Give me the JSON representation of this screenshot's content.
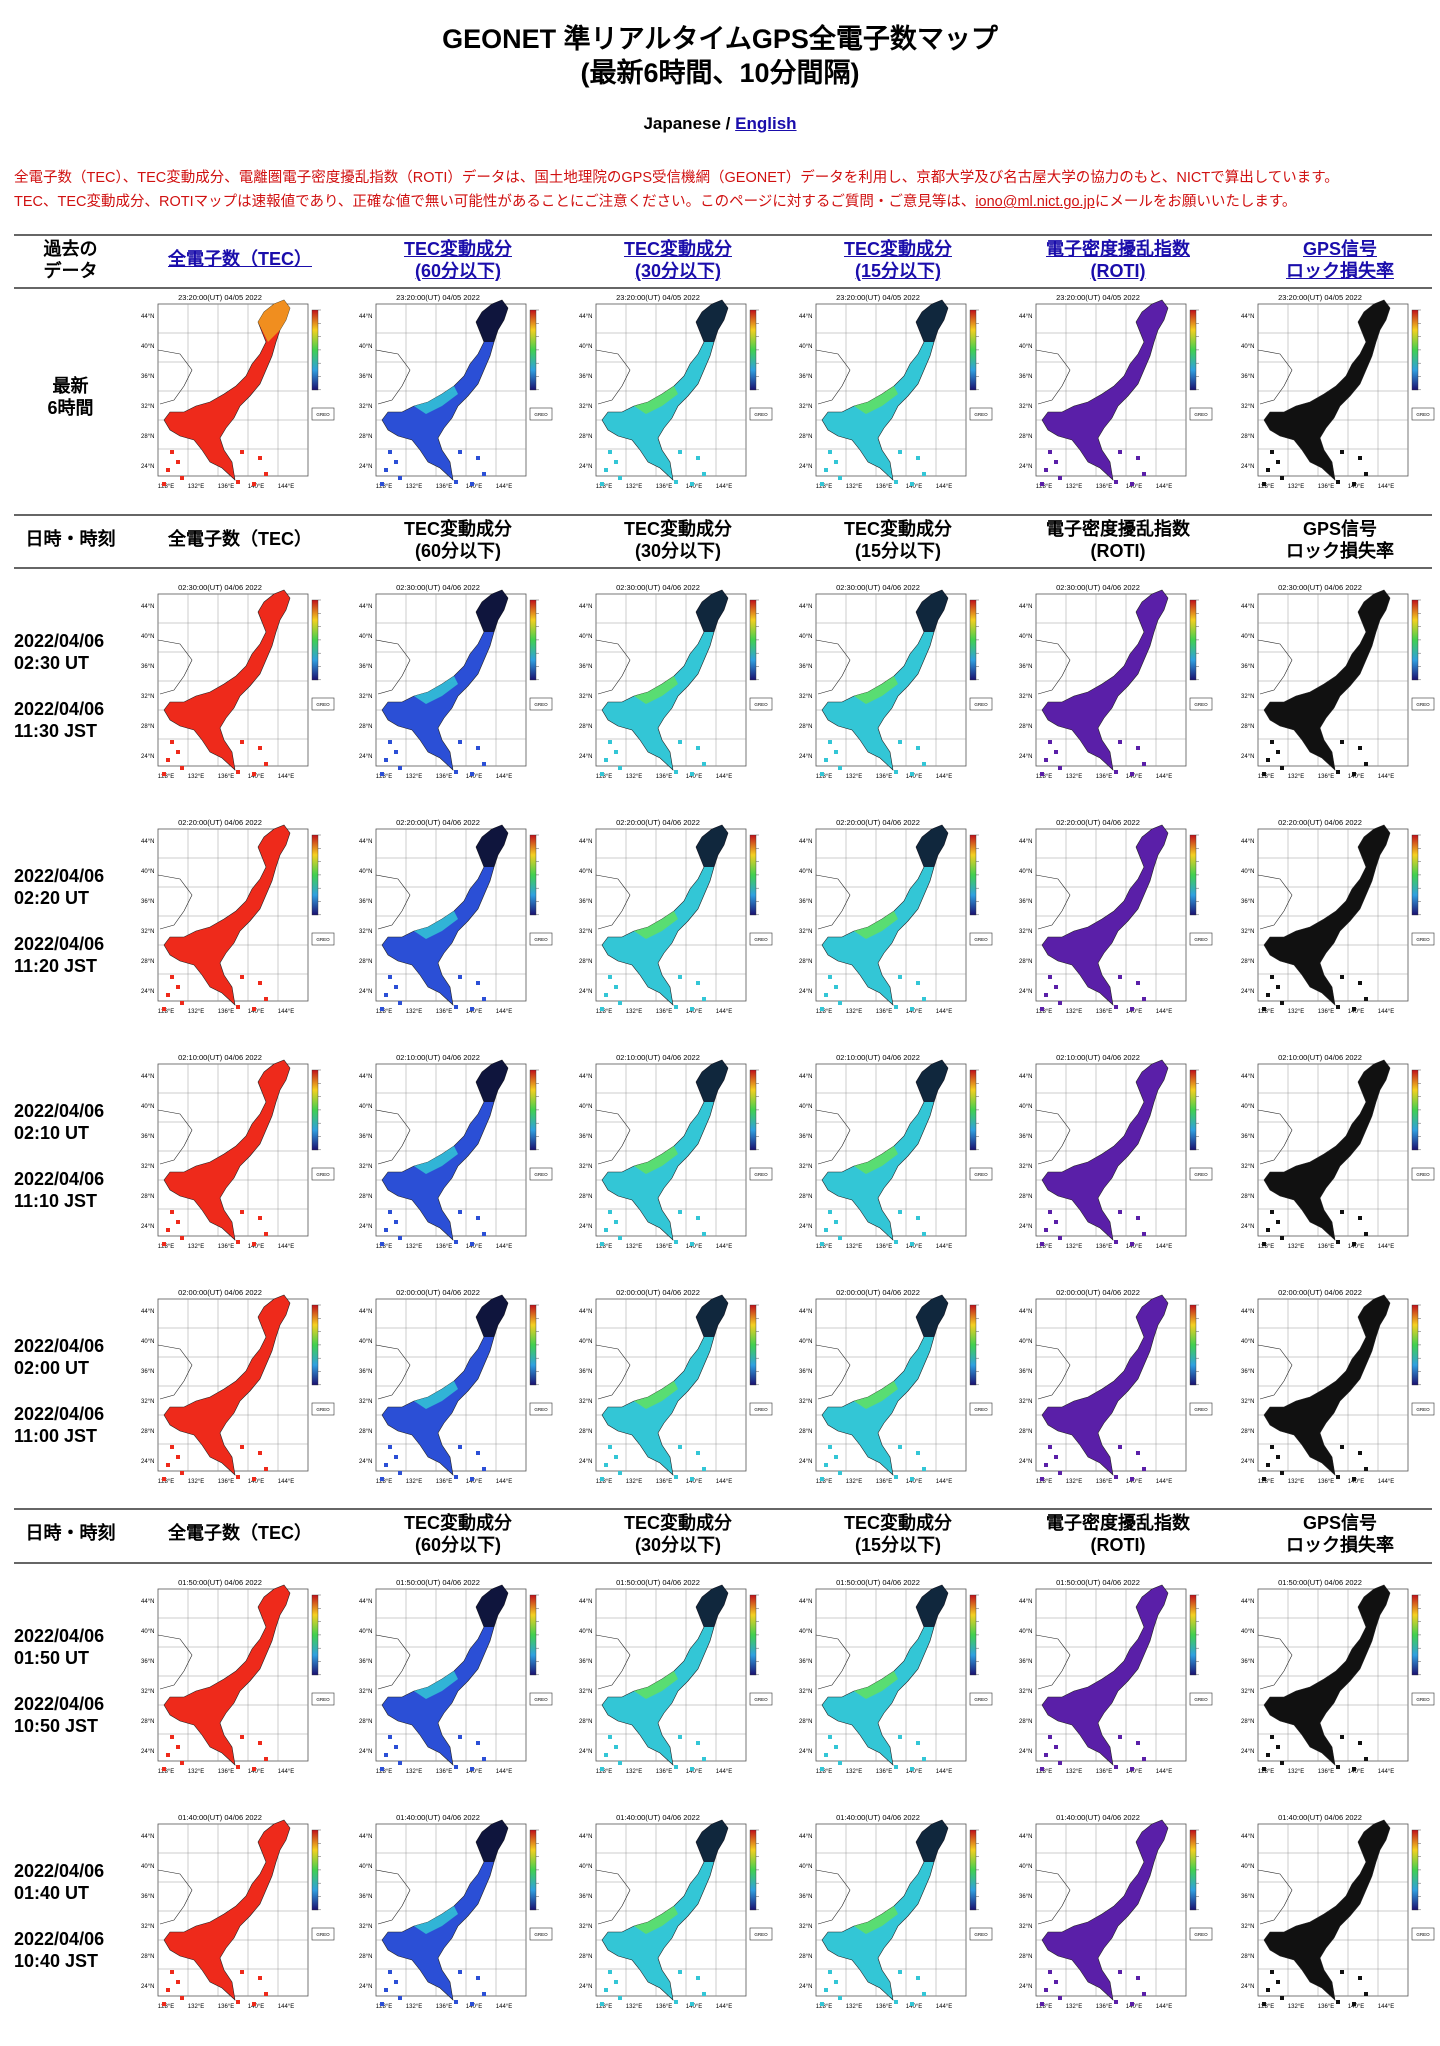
{
  "page": {
    "title_line1": "GEONET 準リアルタイムGPS全電子数マップ",
    "title_line2": "(最新6時間、10分間隔)",
    "lang_current": "Japanese",
    "lang_sep": "/",
    "lang_english": "English",
    "notice_line1": "全電子数（TEC）、TEC変動成分、電離圏電子密度擾乱指数（ROTI）データは、国土地理院のGPS受信機網（GEONET）データを利用し、京都大学及び名古屋大学の協力のもと、NICTで算出しています。",
    "notice_line2_pre": "TEC、TEC変動成分、ROTIマップは速報値であり、正確な値で無い可能性があることにご注意ください。このページに対するご質問・ご意見等は、",
    "notice_email": "iono@ml.nict.go.jp",
    "notice_line2_post": "にメールをお願いいたします。"
  },
  "header_links": {
    "past_label": "過去の\nデータ",
    "cols": [
      {
        "line1": "全電子数（TEC）",
        "line2": ""
      },
      {
        "line1": "TEC変動成分",
        "line2": "(60分以下)"
      },
      {
        "line1": "TEC変動成分",
        "line2": "(30分以下)"
      },
      {
        "line1": "TEC変動成分",
        "line2": "(15分以下)"
      },
      {
        "line1": "電子密度擾乱指数",
        "line2": "(ROTI)"
      },
      {
        "line1": "GPS信号",
        "line2": "ロック損失率"
      }
    ]
  },
  "header_plain": {
    "label": "日時・時刻",
    "cols": [
      {
        "line1": "全電子数（TEC）",
        "line2": ""
      },
      {
        "line1": "TEC変動成分",
        "line2": "(60分以下)"
      },
      {
        "line1": "TEC変動成分",
        "line2": "(30分以下)"
      },
      {
        "line1": "TEC変動成分",
        "line2": "(15分以下)"
      },
      {
        "line1": "電子密度擾乱指数",
        "line2": "(ROTI)"
      },
      {
        "line1": "GPS信号",
        "line2": "ロック損失率"
      }
    ]
  },
  "latest": {
    "label_line1": "最新",
    "label_line2": "6時間",
    "map_title": "23:20:00(UT) 04/05 2022"
  },
  "rows": [
    {
      "utc_date": "2022/04/06",
      "utc_time": "02:30 UT",
      "jst_date": "2022/04/06",
      "jst_time": "11:30 JST",
      "map_title": "02:30:00(UT) 04/06 2022"
    },
    {
      "utc_date": "2022/04/06",
      "utc_time": "02:20 UT",
      "jst_date": "2022/04/06",
      "jst_time": "11:20 JST",
      "map_title": "02:20:00(UT) 04/06 2022"
    },
    {
      "utc_date": "2022/04/06",
      "utc_time": "02:10 UT",
      "jst_date": "2022/04/06",
      "jst_time": "11:10 JST",
      "map_title": "02:10:00(UT) 04/06 2022"
    },
    {
      "utc_date": "2022/04/06",
      "utc_time": "02:00 UT",
      "jst_date": "2022/04/06",
      "jst_time": "11:00 JST",
      "map_title": "02:00:00(UT) 04/06 2022"
    },
    {
      "utc_date": "2022/04/06",
      "utc_time": "01:50 UT",
      "jst_date": "2022/04/06",
      "jst_time": "10:50 JST",
      "map_title": "01:50:00(UT) 04/06 2022"
    },
    {
      "utc_date": "2022/04/06",
      "utc_time": "01:40 UT",
      "jst_date": "2022/04/06",
      "jst_time": "10:40 JST",
      "map_title": "01:40:00(UT) 04/06 2022"
    }
  ],
  "map_axes": {
    "lat_ticks": [
      "44°N",
      "40°N",
      "36°N",
      "32°N",
      "28°N",
      "24°N"
    ],
    "lon_ticks": [
      "128°E",
      "132°E",
      "136°E",
      "140°E",
      "144°E"
    ],
    "badge": "GREO\nSYSTEM"
  },
  "colors": {
    "tec": "#ee2a1b",
    "tec_north": "#f0a020",
    "dtec_a": "#2b4fd6",
    "dtec_b": "#33c6d6",
    "dtec_c": "#0a0a22",
    "roti": "#5a1fa8",
    "lol": "#111111",
    "link": "#1a0dab",
    "notice": "#d01010"
  },
  "map_styles": [
    "tec",
    "dtec60",
    "dtec30",
    "dtec15",
    "roti",
    "lol"
  ]
}
